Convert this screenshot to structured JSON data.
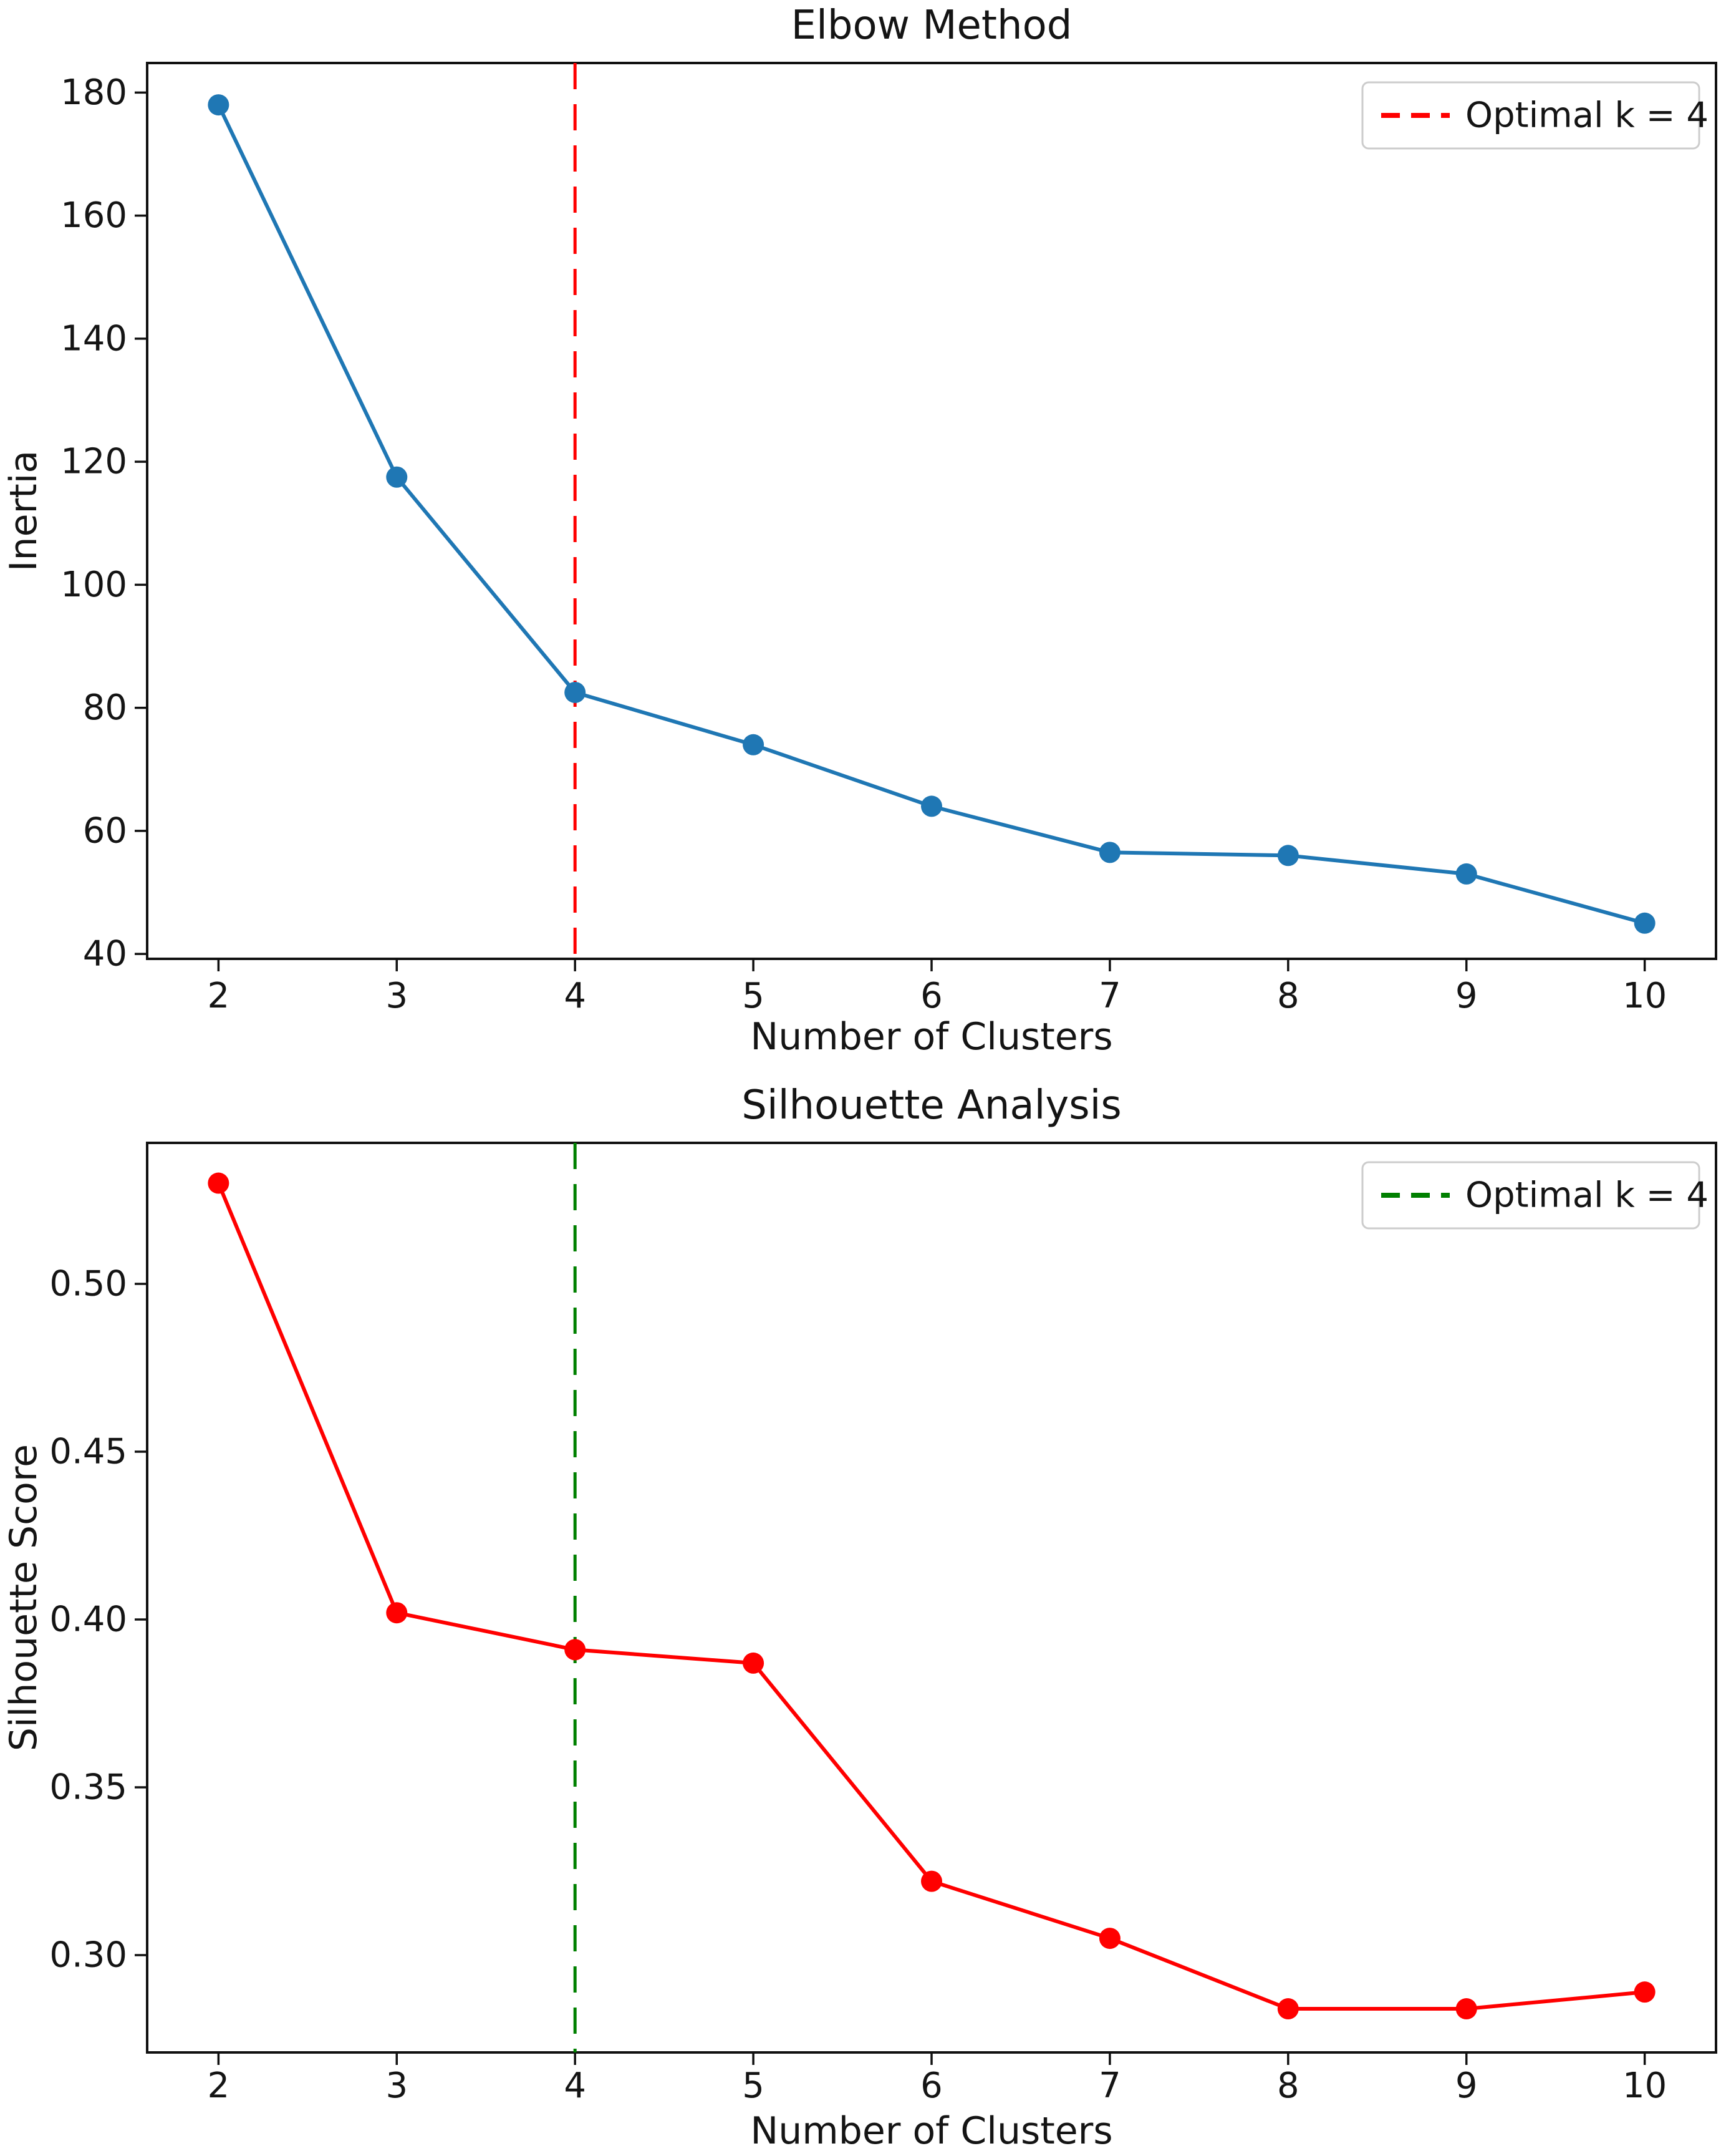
{
  "figure": {
    "background": "#ffffff",
    "text_color": "#141414",
    "spine_color": "#111111"
  },
  "chart_data": [
    {
      "type": "line",
      "title": "Elbow Method",
      "xlabel": "Number of Clusters",
      "ylabel": "Inertia",
      "x": [
        2,
        3,
        4,
        5,
        6,
        7,
        8,
        9,
        10
      ],
      "y": [
        178,
        117.5,
        82.5,
        74,
        64,
        56.5,
        56,
        53,
        45
      ],
      "line_color": "#1f77b4",
      "marker": "circle",
      "xticks": [
        2,
        3,
        4,
        5,
        6,
        7,
        8,
        9,
        10
      ],
      "yticks": [
        180,
        160,
        140,
        120,
        100,
        80,
        60,
        40
      ],
      "ytick_decimals": 0,
      "xlim": [
        1.6,
        10.4
      ],
      "ylim": [
        39.2,
        184.8
      ],
      "grid": false,
      "vline": {
        "x": 4,
        "color": "#ff0000",
        "style": "dashed"
      },
      "legend": {
        "position": "upper right",
        "label": "Optimal k = 4",
        "swatch_color": "#ff0000",
        "swatch_style": "dashed"
      }
    },
    {
      "type": "line",
      "title": "Silhouette Analysis",
      "xlabel": "Number of Clusters",
      "ylabel": "Silhouette Score",
      "x": [
        2,
        3,
        4,
        5,
        6,
        7,
        8,
        9,
        10
      ],
      "y": [
        0.53,
        0.402,
        0.391,
        0.387,
        0.322,
        0.305,
        0.284,
        0.284,
        0.289
      ],
      "line_color": "#ff0000",
      "marker": "circle",
      "xticks": [
        2,
        3,
        4,
        5,
        6,
        7,
        8,
        9,
        10
      ],
      "yticks": [
        0.5,
        0.45,
        0.4,
        0.35,
        0.3
      ],
      "ytick_decimals": 2,
      "xlim": [
        1.6,
        10.4
      ],
      "ylim": [
        0.271,
        0.542
      ],
      "grid": false,
      "vline": {
        "x": 4,
        "color": "#008000",
        "style": "dashed"
      },
      "legend": {
        "position": "upper right",
        "label": "Optimal k = 4",
        "swatch_color": "#008000",
        "swatch_style": "dashed"
      }
    }
  ]
}
